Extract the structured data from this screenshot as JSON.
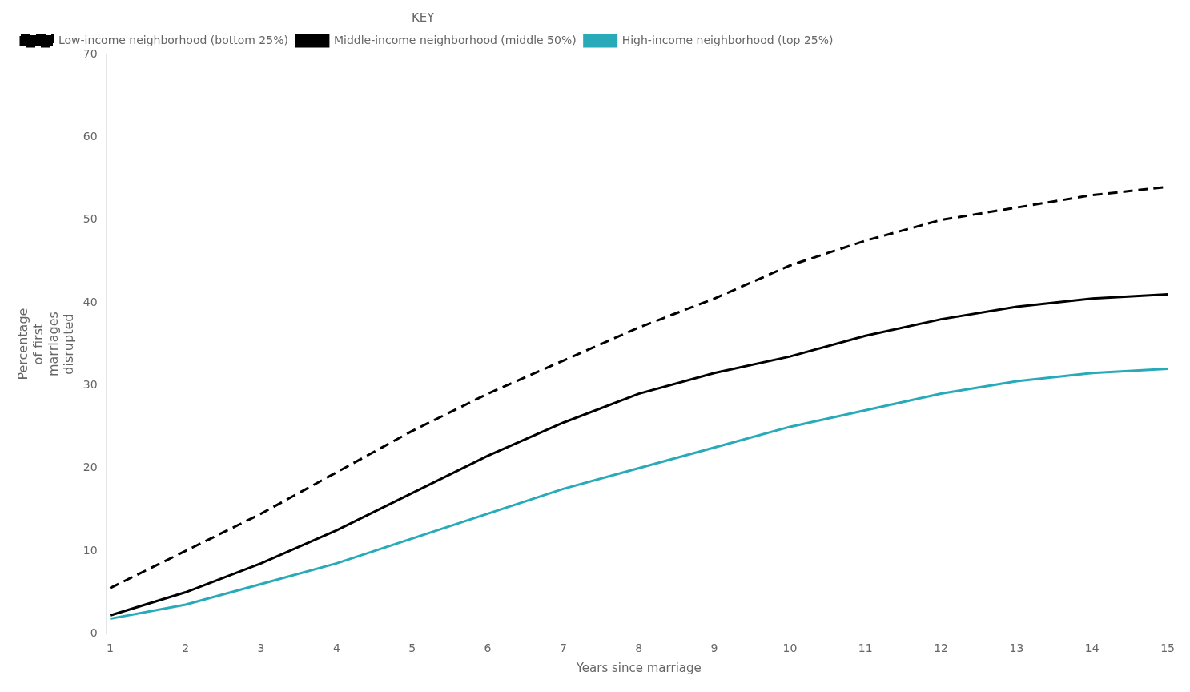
{
  "chart_data": {
    "type": "line",
    "xlabel": "Years since marriage",
    "ylabel": [
      "Percentage",
      "of first",
      "marriages",
      "disrupted"
    ],
    "x": [
      1,
      2,
      3,
      4,
      5,
      6,
      7,
      8,
      9,
      10,
      11,
      12,
      13,
      14,
      15
    ],
    "series": [
      {
        "name": "Low-income neighborhood (bottom 25%)",
        "color": "#000000",
        "line_style": "dashed",
        "values": [
          5.5,
          10.0,
          14.5,
          19.5,
          24.5,
          29.0,
          33.0,
          37.0,
          40.5,
          44.5,
          47.5,
          50.0,
          51.5,
          53.0,
          54.0
        ]
      },
      {
        "name": "Middle-income neighborhood (middle 50%)",
        "color": "#000000",
        "line_style": "solid",
        "values": [
          2.2,
          5.0,
          8.5,
          12.5,
          17.0,
          21.5,
          25.5,
          29.0,
          31.5,
          33.5,
          36.0,
          38.0,
          39.5,
          40.5,
          41.0
        ]
      },
      {
        "name": "High-income neighborhood (top 25%)",
        "color": "#29aab8",
        "line_style": "solid",
        "values": [
          1.8,
          3.5,
          6.0,
          8.5,
          11.5,
          14.5,
          17.5,
          20.0,
          22.5,
          25.0,
          27.0,
          29.0,
          30.5,
          31.5,
          32.0
        ]
      }
    ],
    "xlim": [
      0.95,
      15.05
    ],
    "xticks": [
      1,
      2,
      3,
      4,
      5,
      6,
      7,
      8,
      9,
      10,
      11,
      12,
      13,
      14,
      15
    ],
    "ylim": [
      0,
      70
    ],
    "yticks": [
      0,
      10,
      20,
      30,
      40,
      50,
      60,
      70
    ],
    "grid": false,
    "legend": "upper left",
    "legend_title": "KEY"
  }
}
